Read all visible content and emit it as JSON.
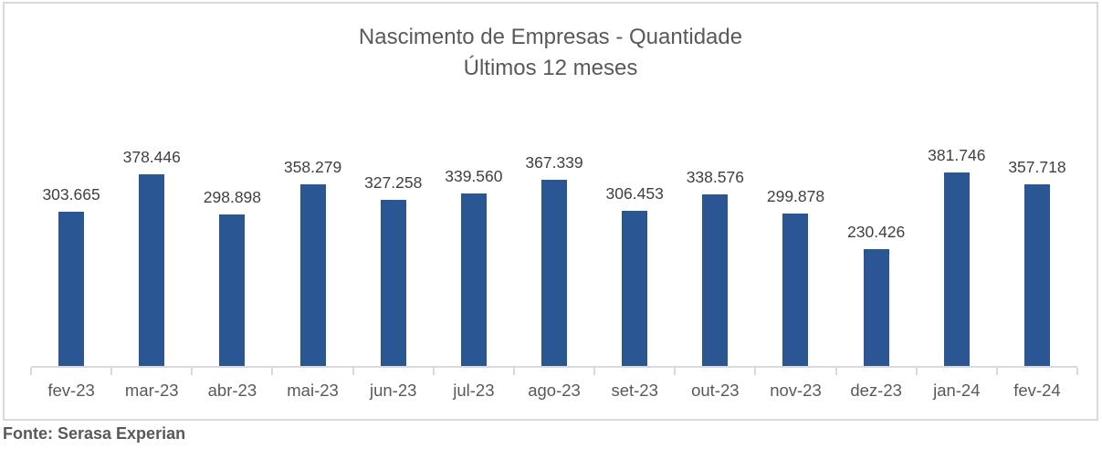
{
  "chart_data": {
    "type": "bar",
    "title": "Nascimento de Empresas - Quantidade",
    "subtitle": "Últimos 12 meses",
    "categories": [
      "fev-23",
      "mar-23",
      "abr-23",
      "mai-23",
      "jun-23",
      "jul-23",
      "ago-23",
      "set-23",
      "out-23",
      "nov-23",
      "dez-23",
      "jan-24",
      "fev-24"
    ],
    "values": [
      303665,
      378446,
      298898,
      358279,
      327258,
      339560,
      367339,
      306453,
      338576,
      299878,
      230426,
      381746,
      357718
    ],
    "value_labels": [
      "303.665",
      "378.446",
      "298.898",
      "358.279",
      "327.258",
      "339.560",
      "367.339",
      "306.453",
      "338.576",
      "299.878",
      "230.426",
      "381.746",
      "357.718"
    ],
    "xlabel": "",
    "ylabel": "",
    "ylim": [
      0,
      450000
    ],
    "grid": false,
    "legend": "none",
    "data_labels_position": "above-bars",
    "bar_color": "#2a5694",
    "axis_color": "#d9d9d9",
    "title_color": "#595959",
    "label_color": "#404040"
  },
  "footer": {
    "source": "Fonte: Serasa Experian"
  }
}
